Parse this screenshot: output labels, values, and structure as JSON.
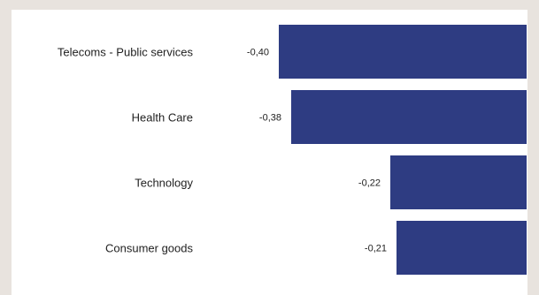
{
  "colors": {
    "background": "#e8e3de",
    "panel": "#ffffff",
    "bar": "#2e3c82",
    "text": "#222222"
  },
  "chart_data": {
    "type": "bar",
    "orientation": "horizontal",
    "categories": [
      "Telecoms - Public services",
      "Health Care",
      "Technology",
      "Consumer goods"
    ],
    "values": [
      -0.4,
      -0.38,
      -0.22,
      -0.21
    ],
    "value_labels": [
      "-0,40",
      "-0,38",
      "-0,22",
      "-0,21"
    ],
    "xlim": [
      -0.6,
      0
    ],
    "grid": false,
    "legend": "none"
  }
}
